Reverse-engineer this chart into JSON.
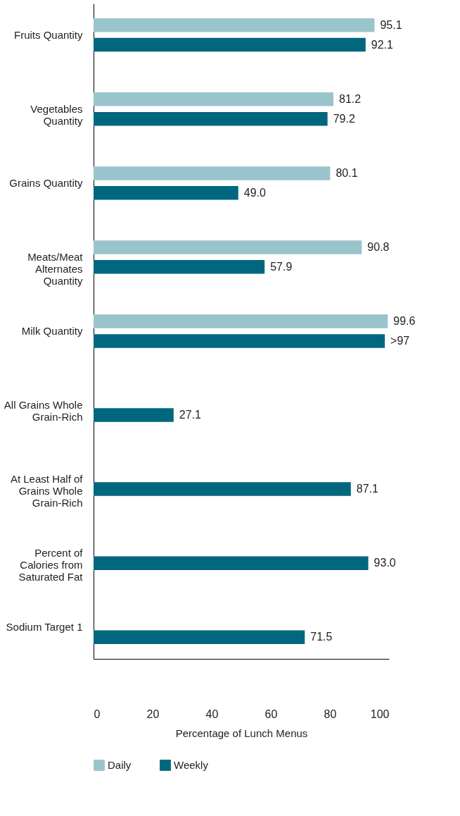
{
  "chart_data": {
    "type": "bar",
    "orientation": "horizontal",
    "xlabel": "Percentage of Lunch Menus",
    "categories": [
      "Fruits Quantity",
      "Vegetables Quantity",
      "Grains Quantity",
      "Meats/Meat Alternates Quantity",
      "Milk Quantity",
      "All Grains Whole Grain-Rich",
      "At Least Half of Grains Whole Grain-Rich",
      "Percent of Calories from Saturated Fat",
      "Sodium Target 1"
    ],
    "series": [
      {
        "name": "Daily",
        "color": "#9ac4cc",
        "values": [
          95.1,
          81.2,
          80.1,
          90.8,
          99.6,
          null,
          null,
          null,
          null
        ],
        "value_labels": [
          "95.1",
          "81.2",
          "80.1",
          "90.8",
          "99.6",
          null,
          null,
          null,
          null
        ]
      },
      {
        "name": "Weekly",
        "color": "#00677f",
        "values": [
          92.1,
          79.2,
          49.0,
          57.9,
          98.6,
          27.1,
          87.1,
          93.0,
          71.5
        ],
        "value_labels": [
          "92.1",
          "79.2",
          "49.0",
          "57.9",
          ">97",
          "27.1",
          "87.1",
          "93.0",
          "71.5"
        ]
      }
    ],
    "xlim": [
      0,
      100
    ],
    "xticks": [
      0,
      20,
      40,
      60,
      80,
      100
    ],
    "legend": "bottom"
  }
}
